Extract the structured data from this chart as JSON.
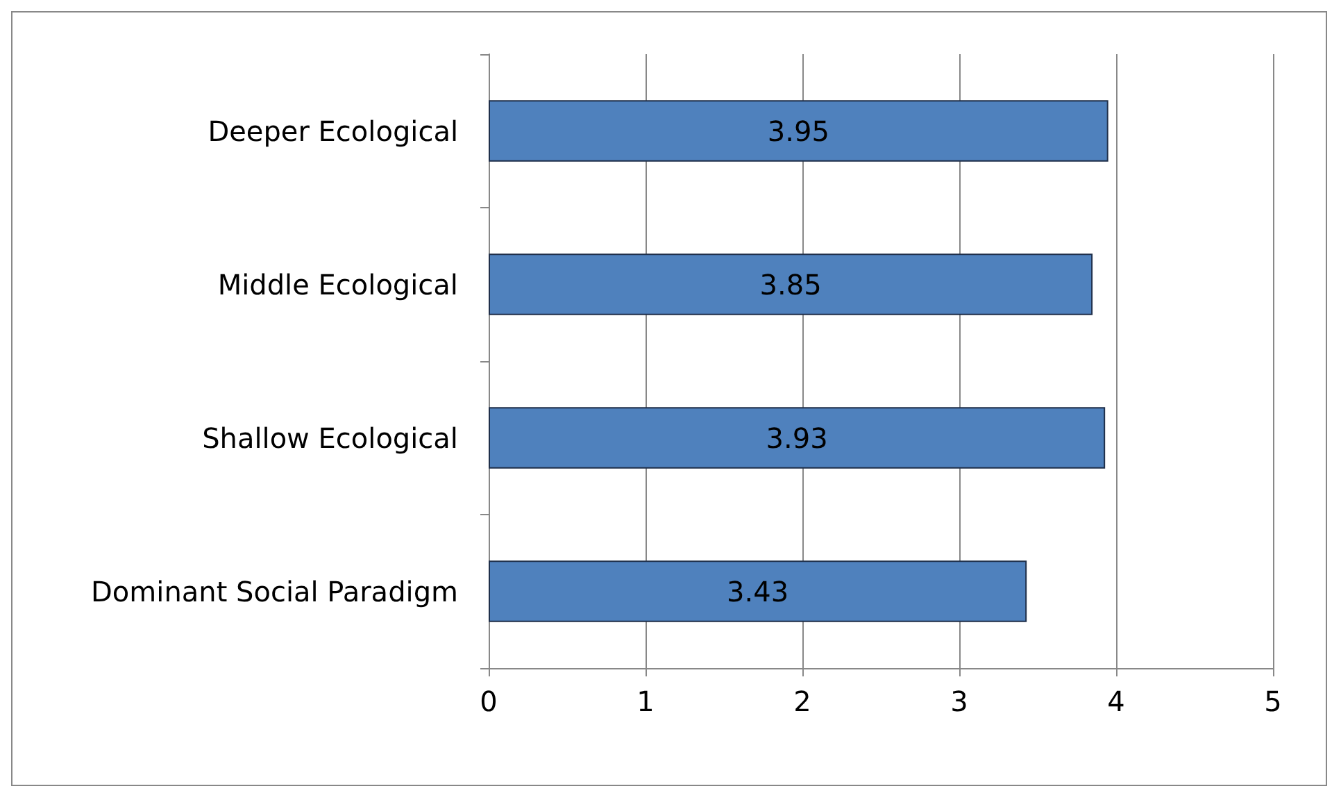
{
  "chart_data": {
    "type": "bar",
    "orientation": "horizontal",
    "categories": [
      "Deeper Ecological",
      "Middle Ecological",
      "Shallow Ecological",
      "Dominant Social Paradigm"
    ],
    "values": [
      3.95,
      3.85,
      3.93,
      3.43
    ],
    "color": "#4f81bd",
    "xlim": [
      0,
      5
    ],
    "xticks": [
      0,
      1,
      2,
      3,
      4,
      5
    ],
    "grid": "x",
    "data_labels": true
  }
}
